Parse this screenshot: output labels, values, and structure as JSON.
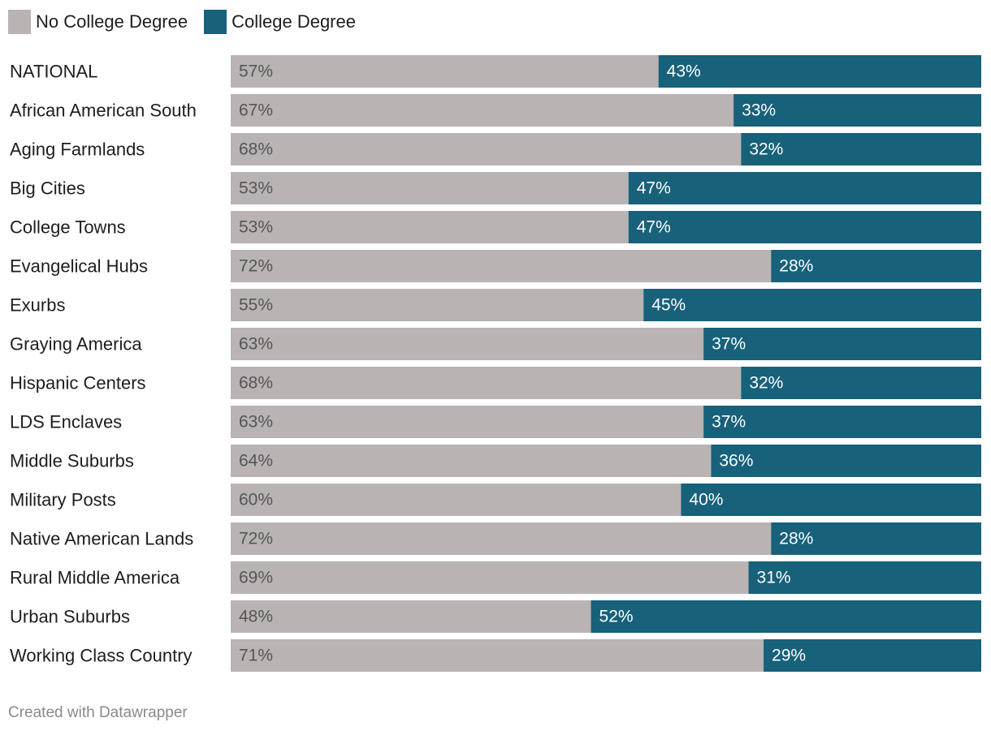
{
  "chart_data": {
    "type": "bar",
    "orientation": "horizontal",
    "stacked": true,
    "normalized_percent": true,
    "categories": [
      "NATIONAL",
      "African American South",
      "Aging Farmlands",
      "Big Cities",
      "College Towns",
      "Evangelical Hubs",
      "Exurbs",
      "Graying America",
      "Hispanic Centers",
      "LDS Enclaves",
      "Middle Suburbs",
      "Military Posts",
      "Native American Lands",
      "Rural Middle America",
      "Urban Suburbs",
      "Working Class Country"
    ],
    "series": [
      {
        "name": "No College Degree",
        "color": "#b9b3b4",
        "values": [
          57,
          67,
          68,
          53,
          53,
          72,
          55,
          63,
          68,
          63,
          64,
          60,
          72,
          69,
          48,
          71
        ],
        "labels": [
          "57%",
          "67%",
          "68%",
          "53%",
          "53%",
          "72%",
          "55%",
          "63%",
          "68%",
          "63%",
          "64%",
          "60%",
          "72%",
          "69%",
          "48%",
          "71%"
        ]
      },
      {
        "name": "College Degree",
        "color": "#17617b",
        "values": [
          43,
          33,
          32,
          47,
          47,
          28,
          45,
          37,
          32,
          37,
          36,
          40,
          28,
          31,
          52,
          29
        ],
        "labels": [
          "43%",
          "33%",
          "32%",
          "47%",
          "47%",
          "28%",
          "45%",
          "37%",
          "32%",
          "37%",
          "36%",
          "40%",
          "28%",
          "31%",
          "52%",
          "29%"
        ]
      }
    ],
    "xlim": [
      0,
      100
    ],
    "legend_position": "top-left",
    "grid": false
  },
  "footer": {
    "credit": "Created with Datawrapper"
  }
}
